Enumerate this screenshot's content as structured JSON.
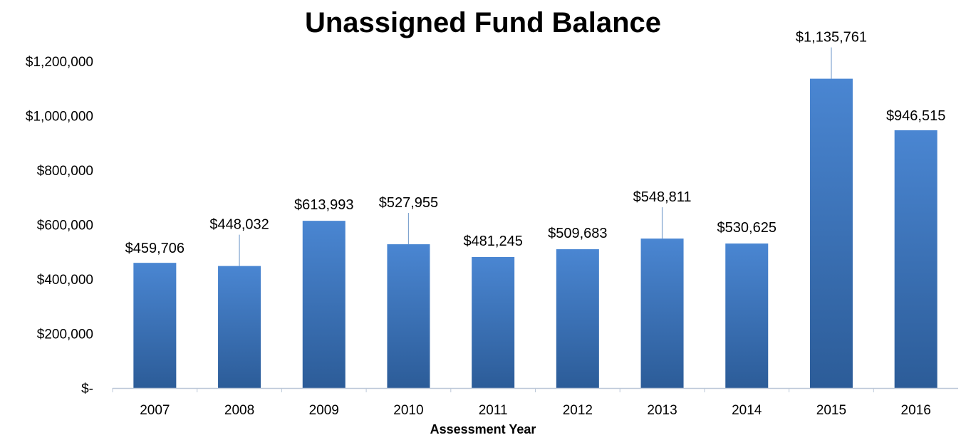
{
  "chart_data": {
    "type": "bar",
    "title": "Unassigned Fund Balance",
    "xlabel": "Assessment Year",
    "ylabel": "",
    "categories": [
      "2007",
      "2008",
      "2009",
      "2010",
      "2011",
      "2012",
      "2013",
      "2014",
      "2015",
      "2016"
    ],
    "values": [
      459706,
      448032,
      613993,
      527955,
      481245,
      509683,
      548811,
      530625,
      1135761,
      946515
    ],
    "data_labels": [
      "$459,706",
      "$448,032",
      "$613,993",
      "$527,955",
      "$481,245",
      "$509,683",
      "$548,811",
      "$530,625",
      "$1,135,761",
      "$946,515"
    ],
    "ylim": [
      0,
      1200000
    ],
    "yticks": [
      0,
      200000,
      400000,
      600000,
      800000,
      1000000,
      1200000
    ],
    "ytick_labels": [
      "$-",
      "$200,000",
      "$400,000",
      "$600,000",
      "$800,000",
      "$1,000,000",
      "$1,200,000"
    ],
    "grid": false,
    "legend": "none",
    "bar_color_top": "#4a86d2",
    "bar_color_bottom": "#2c5c98",
    "axis_color": "#bcc8d8",
    "leader_line_color": "#7fa3cf"
  }
}
